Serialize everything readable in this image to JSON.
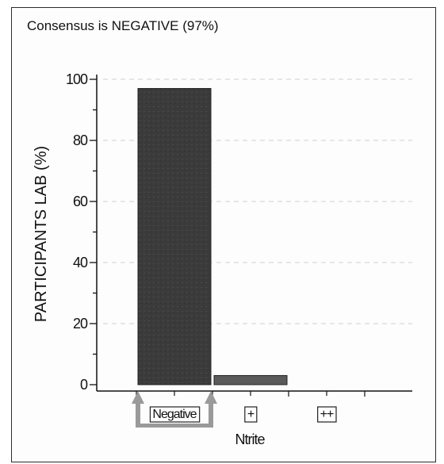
{
  "header": {
    "consensus": "Consensus is NEGATIVE (97%)"
  },
  "chart_data": {
    "type": "bar",
    "categories": [
      "Negative",
      "+",
      "++"
    ],
    "values": [
      97,
      3,
      0
    ],
    "xlabel": "Ntrite",
    "ylabel": "PARTICIPANTS LAB (%)",
    "ylim": [
      0,
      100
    ],
    "yticks": [
      0,
      20,
      40,
      60,
      80,
      100
    ],
    "grid": true,
    "consensus_category": "Negative",
    "colors": {
      "bar_main": "#3d3d3d",
      "bar_minor": "#5a5a5a",
      "grid": "#cfcfcf",
      "axis": "#111111",
      "marker": "#9a9a9a"
    }
  }
}
